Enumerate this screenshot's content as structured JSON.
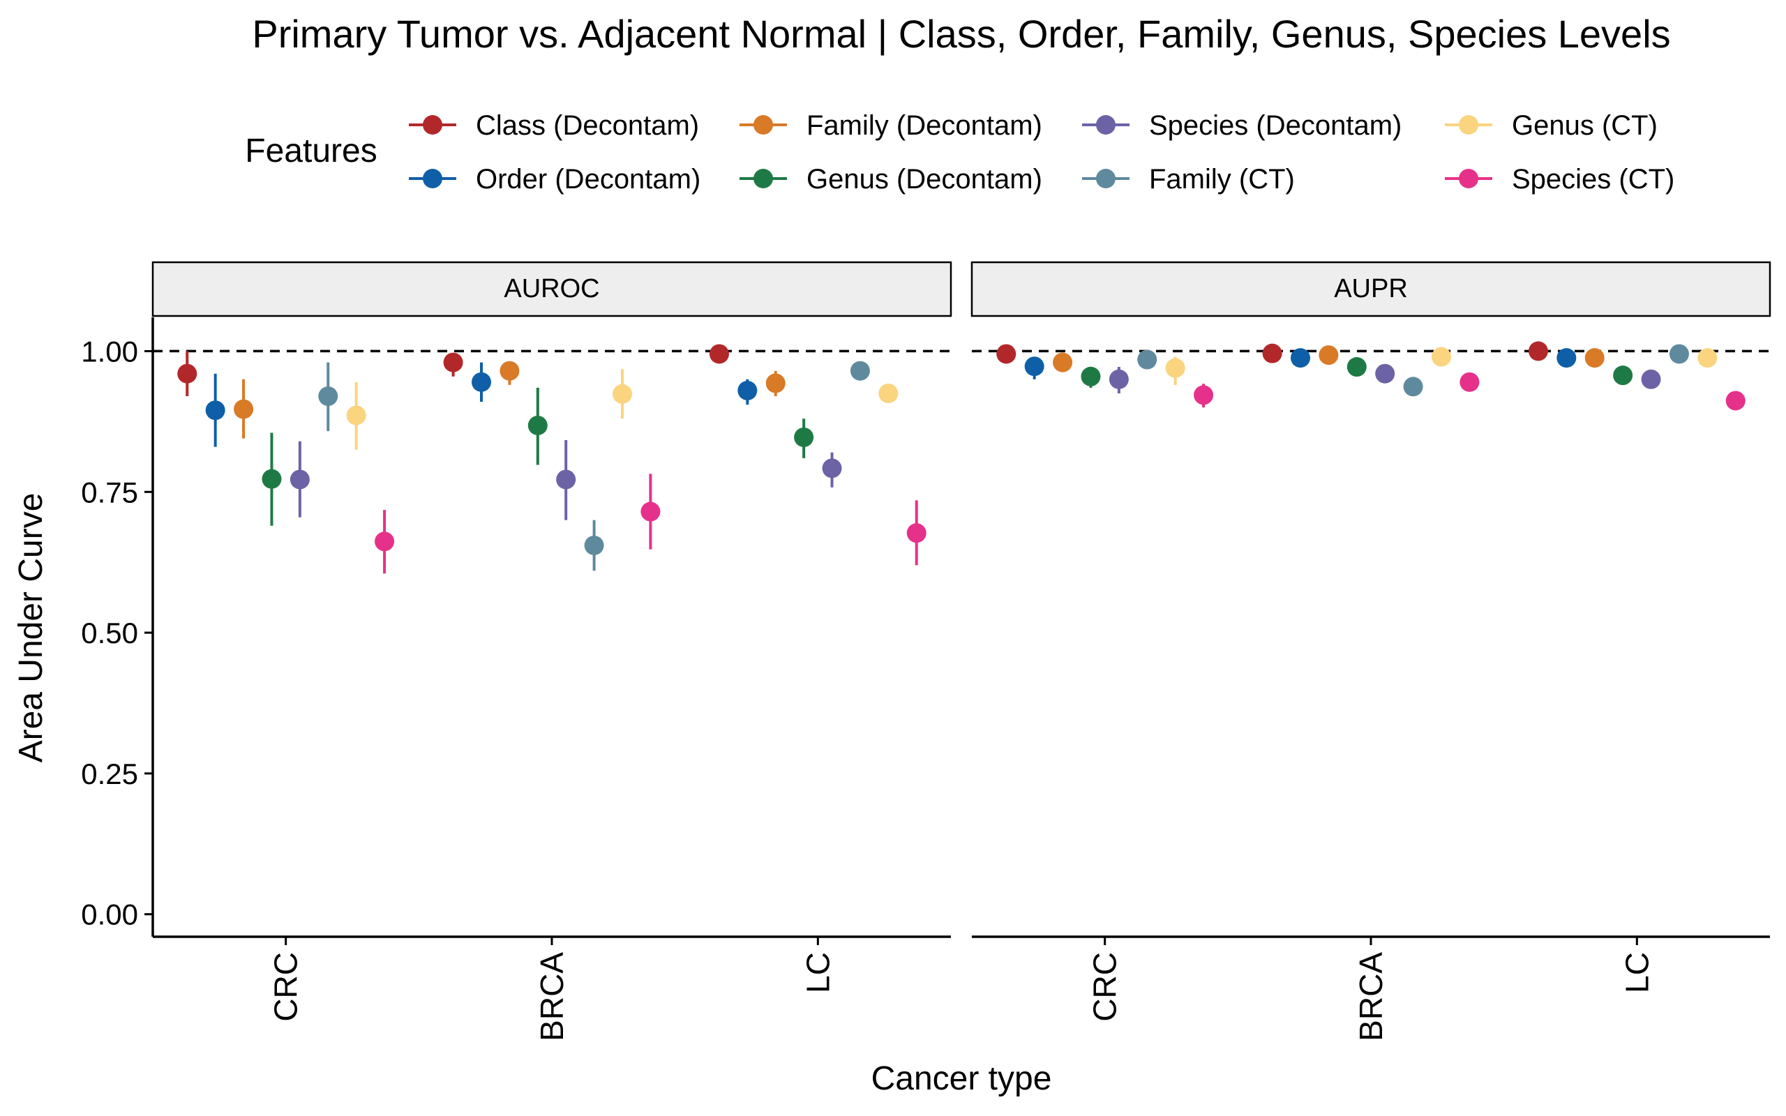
{
  "chart_data": {
    "type": "scatter",
    "title": "Primary Tumor vs. Adjacent Normal | Class, Order, Family, Genus, Species Levels",
    "xlabel": "Cancer type",
    "ylabel": "Area Under Curve",
    "ylim": [
      -0.04,
      1.06
    ],
    "yticks": [
      "0.00",
      "0.25",
      "0.50",
      "0.75",
      "1.00"
    ],
    "reference_line": 1.0,
    "categories": [
      "CRC",
      "BRCA",
      "LC"
    ],
    "legend": {
      "title": "Features",
      "position": "top"
    },
    "panels": [
      {
        "title": "AUROC",
        "series": [
          {
            "name": "Class (Decontam)",
            "color": "#B2282A",
            "values": [
              0.96,
              0.98,
              0.995
            ],
            "lower": [
              0.92,
              0.955,
              0.985
            ],
            "upper": [
              1.0,
              0.995,
              1.0
            ]
          },
          {
            "name": "Order (Decontam)",
            "color": "#0E5FA8",
            "values": [
              0.895,
              0.945,
              0.93
            ],
            "lower": [
              0.83,
              0.91,
              0.905
            ],
            "upper": [
              0.96,
              0.98,
              0.95
            ]
          },
          {
            "name": "Family (Decontam)",
            "color": "#D97A27",
            "values": [
              0.897,
              0.965,
              0.943
            ],
            "lower": [
              0.845,
              0.94,
              0.92
            ],
            "upper": [
              0.95,
              0.98,
              0.965
            ]
          },
          {
            "name": "Genus (Decontam)",
            "color": "#1E7A44",
            "values": [
              0.773,
              0.868,
              0.847
            ],
            "lower": [
              0.69,
              0.798,
              0.81
            ],
            "upper": [
              0.855,
              0.935,
              0.88
            ]
          },
          {
            "name": "Species (Decontam)",
            "color": "#6C63A6",
            "values": [
              0.772,
              0.772,
              0.792
            ],
            "lower": [
              0.705,
              0.7,
              0.758
            ],
            "upper": [
              0.84,
              0.842,
              0.82
            ]
          },
          {
            "name": "Family (CT)",
            "color": "#5F8A9E",
            "values": [
              0.92,
              0.655,
              0.965
            ],
            "lower": [
              0.858,
              0.61,
              0.965
            ],
            "upper": [
              0.98,
              0.7,
              0.965
            ]
          },
          {
            "name": "Genus (CT)",
            "color": "#FAD47E",
            "values": [
              0.886,
              0.924,
              0.925
            ],
            "lower": [
              0.825,
              0.88,
              0.925
            ],
            "upper": [
              0.945,
              0.968,
              0.925
            ]
          },
          {
            "name": "Species (CT)",
            "color": "#E6318A",
            "values": [
              0.662,
              0.715,
              0.677
            ],
            "lower": [
              0.605,
              0.648,
              0.62
            ],
            "upper": [
              0.718,
              0.782,
              0.735
            ]
          }
        ]
      },
      {
        "title": "AUPR",
        "series": [
          {
            "name": "Class (Decontam)",
            "color": "#B2282A",
            "values": [
              0.995,
              0.996,
              1.0
            ],
            "lower": [
              0.99,
              0.99,
              0.995
            ],
            "upper": [
              1.0,
              1.0,
              1.0
            ]
          },
          {
            "name": "Order (Decontam)",
            "color": "#0E5FA8",
            "values": [
              0.973,
              0.988,
              0.988
            ],
            "lower": [
              0.95,
              0.98,
              0.98
            ],
            "upper": [
              0.99,
              0.995,
              0.995
            ]
          },
          {
            "name": "Family (Decontam)",
            "color": "#D97A27",
            "values": [
              0.98,
              0.993,
              0.988
            ],
            "lower": [
              0.97,
              0.988,
              0.98
            ],
            "upper": [
              0.99,
              0.998,
              0.995
            ]
          },
          {
            "name": "Genus (Decontam)",
            "color": "#1E7A44",
            "values": [
              0.955,
              0.972,
              0.957
            ],
            "lower": [
              0.935,
              0.965,
              0.945
            ],
            "upper": [
              0.97,
              0.98,
              0.968
            ]
          },
          {
            "name": "Species (Decontam)",
            "color": "#6C63A6",
            "values": [
              0.95,
              0.96,
              0.95
            ],
            "lower": [
              0.925,
              0.95,
              0.94
            ],
            "upper": [
              0.972,
              0.97,
              0.96
            ]
          },
          {
            "name": "Family (CT)",
            "color": "#5F8A9E",
            "values": [
              0.985,
              0.937,
              0.995
            ],
            "lower": [
              0.975,
              0.93,
              0.99
            ],
            "upper": [
              0.995,
              0.945,
              1.0
            ]
          },
          {
            "name": "Genus (CT)",
            "color": "#FAD47E",
            "values": [
              0.97,
              0.99,
              0.988
            ],
            "lower": [
              0.94,
              0.985,
              0.98
            ],
            "upper": [
              0.99,
              0.995,
              0.995
            ]
          },
          {
            "name": "Species (CT)",
            "color": "#E6318A",
            "values": [
              0.922,
              0.945,
              0.912
            ],
            "lower": [
              0.9,
              0.94,
              0.9
            ],
            "upper": [
              0.942,
              0.95,
              0.925
            ]
          }
        ]
      }
    ]
  }
}
